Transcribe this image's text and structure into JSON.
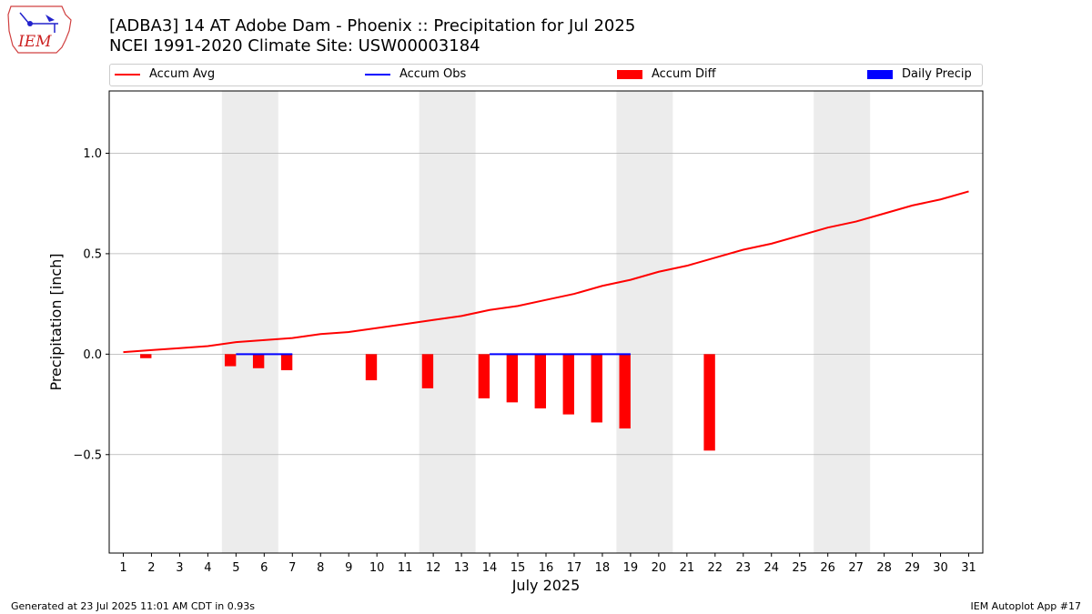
{
  "header": {
    "title_line1": "[ADBA3] 14 AT Adobe Dam - Phoenix :: Precipitation for Jul 2025",
    "title_line2": "NCEI 1991-2020 Climate Site: USW00003184",
    "logo_text": "IEM"
  },
  "footer": {
    "generated": "Generated at 23 Jul 2025 11:01 AM CDT in 0.93s",
    "app": "IEM Autoplot App #17"
  },
  "colors": {
    "avg": "#ff0000",
    "obs": "#0000ff",
    "diff": "#ff0000",
    "daily": "#0000ff",
    "weekend": "#ececec",
    "grid": "#b0b0b0"
  },
  "chart_data": {
    "type": "line",
    "xlabel": "July 2025",
    "ylabel": "Precipitation [inch]",
    "x": [
      1,
      2,
      3,
      4,
      5,
      6,
      7,
      8,
      9,
      10,
      11,
      12,
      13,
      14,
      15,
      16,
      17,
      18,
      19,
      20,
      21,
      22,
      23,
      24,
      25,
      26,
      27,
      28,
      29,
      30,
      31
    ],
    "xlim": [
      0.5,
      31.5
    ],
    "ylim": [
      -0.99,
      1.31
    ],
    "yticks": [
      -0.5,
      0.0,
      0.5,
      1.0
    ],
    "ytick_labels": [
      "−0.5",
      "0.0",
      "0.5",
      "1.0"
    ],
    "grid": "horizontal",
    "legend": {
      "placement": "top",
      "entries": [
        "Accum Avg",
        "Accum Obs",
        "Accum Diff",
        "Daily Precip"
      ]
    },
    "weekend_bands": [
      [
        4.5,
        6.5
      ],
      [
        11.5,
        13.5
      ],
      [
        18.5,
        20.5
      ],
      [
        25.5,
        27.5
      ]
    ],
    "series": [
      {
        "name": "Accum Avg",
        "kind": "line",
        "x": [
          1,
          2,
          3,
          4,
          5,
          6,
          7,
          8,
          9,
          10,
          11,
          12,
          13,
          14,
          15,
          16,
          17,
          18,
          19,
          20,
          21,
          22,
          23,
          24,
          25,
          26,
          27,
          28,
          29,
          30,
          31
        ],
        "values": [
          0.01,
          0.02,
          0.03,
          0.04,
          0.06,
          0.07,
          0.08,
          0.1,
          0.11,
          0.13,
          0.15,
          0.17,
          0.19,
          0.22,
          0.24,
          0.27,
          0.3,
          0.34,
          0.37,
          0.41,
          0.44,
          0.48,
          0.52,
          0.55,
          0.59,
          0.63,
          0.66,
          0.7,
          0.74,
          0.77,
          0.81
        ]
      },
      {
        "name": "Accum Obs",
        "kind": "line",
        "segments": [
          {
            "x": [
              5,
              7
            ],
            "values": [
              0.0,
              0.0
            ]
          },
          {
            "x": [
              14,
              19
            ],
            "values": [
              0.0,
              0.0
            ]
          }
        ]
      },
      {
        "name": "Accum Diff",
        "kind": "bar",
        "x": [
          1.8,
          4.8,
          5.8,
          6.8,
          9.8,
          11.8,
          13.8,
          14.8,
          15.8,
          16.8,
          17.8,
          18.8,
          21.8
        ],
        "values": [
          -0.02,
          -0.06,
          -0.07,
          -0.08,
          -0.13,
          -0.17,
          -0.22,
          -0.24,
          -0.27,
          -0.3,
          -0.34,
          -0.37,
          -0.48
        ]
      },
      {
        "name": "Daily Precip",
        "kind": "bar",
        "x": [],
        "values": []
      }
    ]
  }
}
